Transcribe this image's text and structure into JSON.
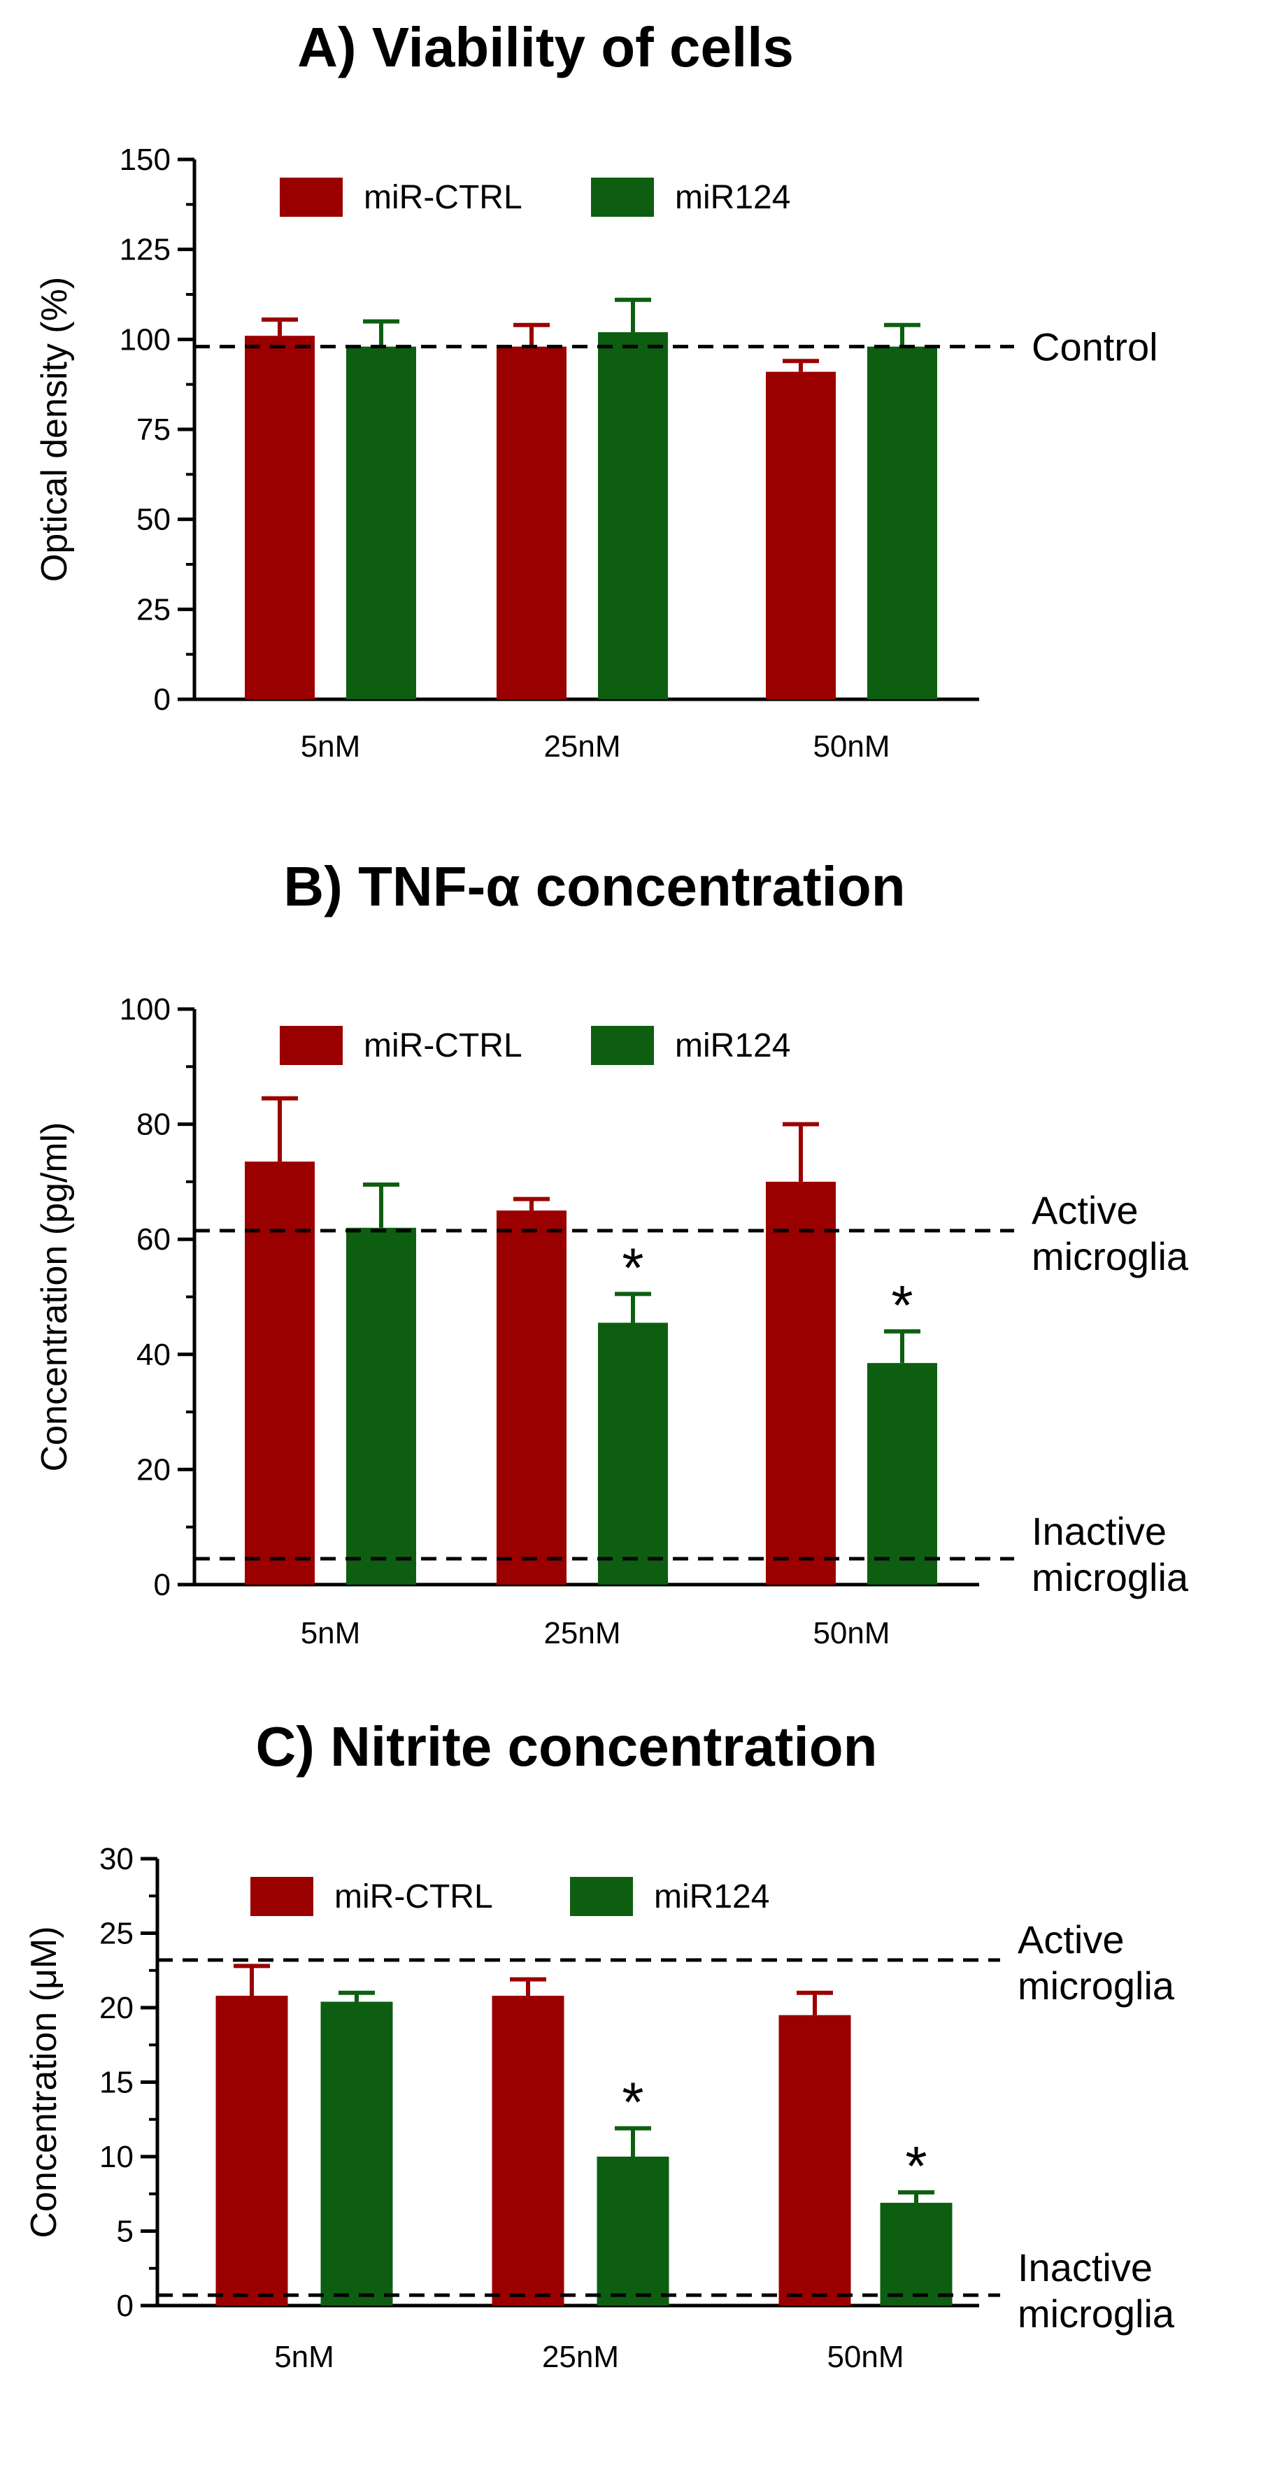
{
  "colors": {
    "miR_CTRL": "#9b0000",
    "miR124": "#0e5e12"
  },
  "chart_data": [
    {
      "type": "bar",
      "title": "A) Viability of cells",
      "ylabel": "Optical density (%)",
      "ylim": [
        0,
        150
      ],
      "yticks": [
        "0",
        "25",
        "50",
        "75",
        "100",
        "125",
        "150"
      ],
      "ytick_values": [
        0,
        25,
        50,
        75,
        100,
        125,
        150
      ],
      "minor_step": 12.5,
      "categories": [
        "5nM",
        "25nM",
        "50nM"
      ],
      "legend": [
        "miR-CTRL",
        "miR124"
      ],
      "series": [
        {
          "name": "miR-CTRL",
          "values": [
            101,
            98,
            91
          ],
          "errors": [
            4.5,
            6,
            3
          ]
        },
        {
          "name": "miR124",
          "values": [
            98,
            102,
            98
          ],
          "errors": [
            7,
            9,
            6
          ]
        }
      ],
      "ref_lines": [
        {
          "value": 98,
          "label": [
            "Control"
          ]
        }
      ],
      "significance": [
        [
          false,
          false
        ],
        [
          false,
          false
        ],
        [
          false,
          false
        ]
      ]
    },
    {
      "type": "bar",
      "title": "B) TNF-α concentration",
      "ylabel": "Concentration (pg/ml)",
      "ylim": [
        0,
        100
      ],
      "yticks": [
        "0",
        "20",
        "40",
        "60",
        "80",
        "100"
      ],
      "ytick_values": [
        0,
        20,
        40,
        60,
        80,
        100
      ],
      "minor_step": 10,
      "categories": [
        "5nM",
        "25nM",
        "50nM"
      ],
      "legend": [
        "miR-CTRL",
        "miR124"
      ],
      "series": [
        {
          "name": "miR-CTRL",
          "values": [
            73.5,
            65,
            70
          ],
          "errors": [
            11,
            2,
            10
          ]
        },
        {
          "name": "miR124",
          "values": [
            62,
            45.5,
            38.5
          ],
          "errors": [
            7.5,
            5,
            5.5
          ]
        }
      ],
      "ref_lines": [
        {
          "value": 61.5,
          "label": [
            "Active",
            "microglia"
          ]
        },
        {
          "value": 4.5,
          "label": [
            "Inactive",
            "microglia"
          ]
        }
      ],
      "significance": [
        [
          false,
          false
        ],
        [
          false,
          true
        ],
        [
          false,
          true
        ]
      ]
    },
    {
      "type": "bar",
      "title": "C) Nitrite concentration",
      "ylabel": "Concentration (μM)",
      "ylim": [
        0,
        30
      ],
      "yticks": [
        "0",
        "5",
        "10",
        "15",
        "20",
        "25",
        "30"
      ],
      "ytick_values": [
        0,
        5,
        10,
        15,
        20,
        25,
        30
      ],
      "minor_step": 2.5,
      "categories": [
        "5nM",
        "25nM",
        "50nM"
      ],
      "legend": [
        "miR-CTRL",
        "miR124"
      ],
      "series": [
        {
          "name": "miR-CTRL",
          "values": [
            20.8,
            20.8,
            19.5
          ],
          "errors": [
            2,
            1.1,
            1.5
          ]
        },
        {
          "name": "miR124",
          "values": [
            20.4,
            10,
            6.9
          ],
          "errors": [
            0.6,
            1.9,
            0.7
          ]
        }
      ],
      "ref_lines": [
        {
          "value": 23.2,
          "label": [
            "Active",
            "microglia"
          ]
        },
        {
          "value": 0.7,
          "label": [
            "Inactive",
            "microglia"
          ]
        }
      ],
      "significance": [
        [
          false,
          false
        ],
        [
          false,
          true
        ],
        [
          false,
          true
        ]
      ]
    }
  ]
}
